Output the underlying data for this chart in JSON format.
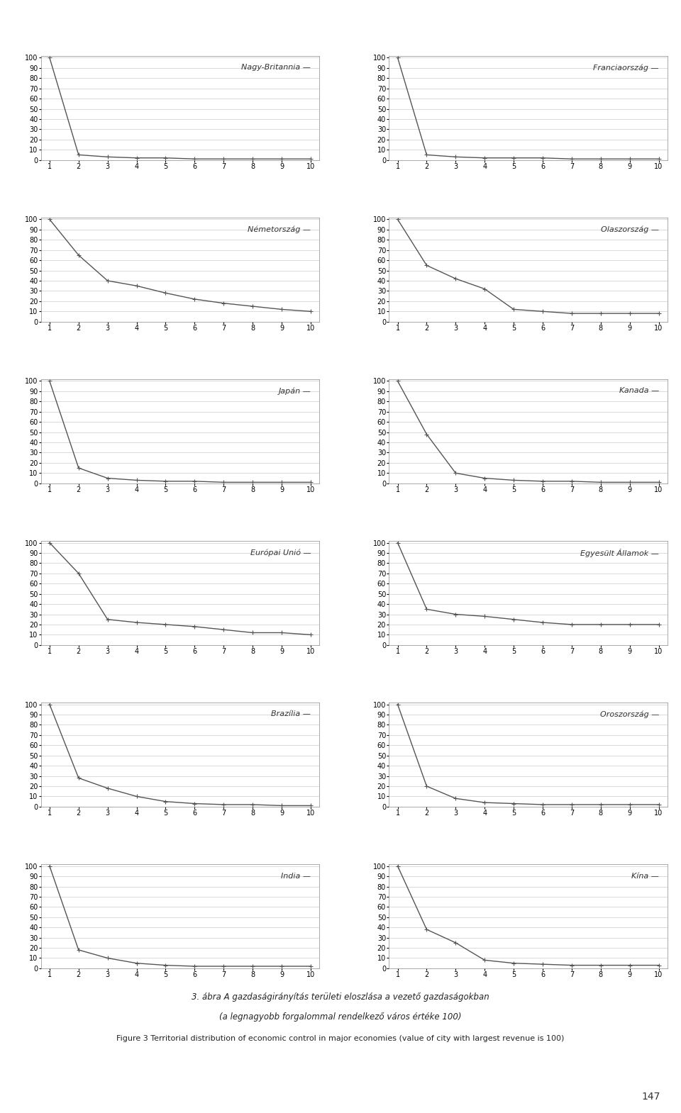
{
  "charts": [
    {
      "title": "Nagy-Britannia",
      "values": [
        100,
        5,
        3,
        2,
        2,
        1,
        1,
        1,
        1,
        1
      ]
    },
    {
      "title": "Franciaország",
      "values": [
        100,
        5,
        3,
        2,
        2,
        2,
        1,
        1,
        1,
        1
      ]
    },
    {
      "title": "Németország",
      "values": [
        100,
        65,
        40,
        35,
        28,
        22,
        18,
        15,
        12,
        10
      ]
    },
    {
      "title": "Olaszország",
      "values": [
        100,
        55,
        42,
        32,
        12,
        10,
        8,
        8,
        8,
        8
      ]
    },
    {
      "title": "Japán",
      "values": [
        100,
        15,
        5,
        3,
        2,
        2,
        1,
        1,
        1,
        1
      ]
    },
    {
      "title": "Kanada",
      "values": [
        100,
        48,
        10,
        5,
        3,
        2,
        2,
        1,
        1,
        1
      ]
    },
    {
      "title": "Európai Unió",
      "values": [
        100,
        70,
        25,
        22,
        20,
        18,
        15,
        12,
        12,
        10
      ]
    },
    {
      "title": "Egyesült Államok",
      "values": [
        100,
        35,
        30,
        28,
        25,
        22,
        20,
        20,
        20,
        20
      ]
    },
    {
      "title": "Brazília",
      "values": [
        100,
        28,
        18,
        10,
        5,
        3,
        2,
        2,
        1,
        1
      ]
    },
    {
      "title": "Oroszország",
      "values": [
        100,
        20,
        8,
        4,
        3,
        2,
        2,
        2,
        2,
        2
      ]
    },
    {
      "title": "India",
      "values": [
        100,
        18,
        10,
        5,
        3,
        2,
        2,
        2,
        2,
        2
      ]
    },
    {
      "title": "Kína",
      "values": [
        100,
        38,
        25,
        8,
        5,
        4,
        3,
        3,
        3,
        3
      ]
    }
  ],
  "x_ticks": [
    1,
    2,
    3,
    4,
    5,
    6,
    7,
    8,
    9,
    10
  ],
  "y_ticks": [
    0,
    10,
    20,
    30,
    40,
    50,
    60,
    70,
    80,
    90,
    100
  ],
  "ylim": [
    0,
    100
  ],
  "xlim": [
    1,
    10
  ],
  "line_color": "#555555",
  "marker": "+",
  "marker_size": 4,
  "line_width": 1.0,
  "title_fontsize": 8,
  "tick_fontsize": 7,
  "grid_color": "#cccccc",
  "bg_color": "#ffffff",
  "caption_line1": "3. ábra A gazdaságirányítás területi eloszlása a vezető gazdaságokban",
  "caption_line2": "(a legnagyobb forgalommal rendelkező város értéke 100)",
  "caption_line3": "Figure 3 Territorial distribution of economic control in major economies (value of city with largest revenue is 100)",
  "page_number": "147"
}
